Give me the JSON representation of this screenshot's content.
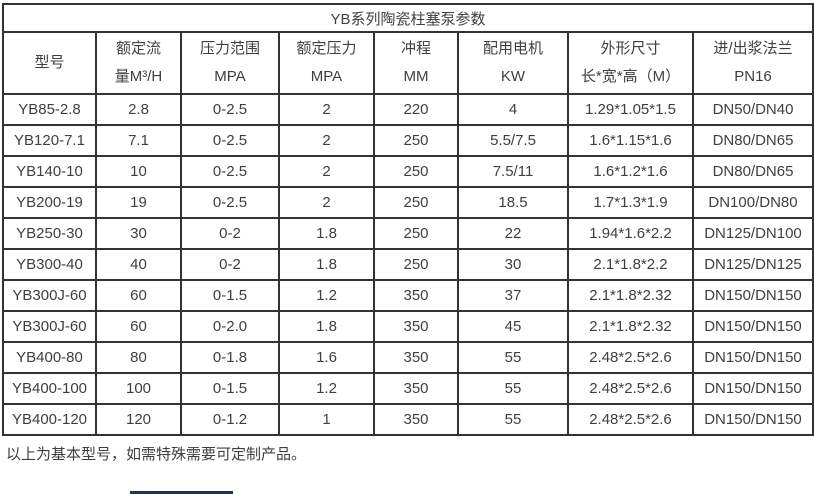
{
  "table": {
    "title": "YB系列陶瓷柱塞泵参数",
    "columns": [
      {
        "key": "model",
        "line1": "型号",
        "line2": ""
      },
      {
        "key": "rated-flow",
        "line1": "额定流",
        "line2": "量M³/H"
      },
      {
        "key": "pressure-range",
        "line1": "压力范围",
        "line2": "MPA"
      },
      {
        "key": "rated-pressure",
        "line1": "额定压力",
        "line2": "MPA"
      },
      {
        "key": "stroke",
        "line1": "冲程",
        "line2": "MM"
      },
      {
        "key": "motor",
        "line1": "配用电机",
        "line2": "KW"
      },
      {
        "key": "dimensions",
        "line1": "外形尺寸",
        "line2": "长*宽*高（M）"
      },
      {
        "key": "flange",
        "line1": "进/出浆法兰",
        "line2": "PN16"
      }
    ],
    "rows": [
      [
        "YB85-2.8",
        "2.8",
        "0-2.5",
        "2",
        "220",
        "4",
        "1.29*1.05*1.5",
        "DN50/DN40"
      ],
      [
        "YB120-7.1",
        "7.1",
        "0-2.5",
        "2",
        "250",
        "5.5/7.5",
        "1.6*1.15*1.6",
        "DN80/DN65"
      ],
      [
        "YB140-10",
        "10",
        "0-2.5",
        "2",
        "250",
        "7.5/11",
        "1.6*1.2*1.6",
        "DN80/DN65"
      ],
      [
        "YB200-19",
        "19",
        "0-2.5",
        "2",
        "250",
        "18.5",
        "1.7*1.3*1.9",
        "DN100/DN80"
      ],
      [
        "YB250-30",
        "30",
        "0-2",
        "1.8",
        "250",
        "22",
        "1.94*1.6*2.2",
        "DN125/DN100"
      ],
      [
        "YB300-40",
        "40",
        "0-2",
        "1.8",
        "250",
        "30",
        "2.1*1.8*2.2",
        "DN125/DN125"
      ],
      [
        "YB300J-60",
        "60",
        "0-1.5",
        "1.2",
        "350",
        "37",
        "2.1*1.8*2.32",
        "DN150/DN150"
      ],
      [
        "YB300J-60",
        "60",
        "0-2.0",
        "1.8",
        "350",
        "45",
        "2.1*1.8*2.32",
        "DN150/DN150"
      ],
      [
        "YB400-80",
        "80",
        "0-1.8",
        "1.6",
        "350",
        "55",
        "2.48*2.5*2.6",
        "DN150/DN150"
      ],
      [
        "YB400-100",
        "100",
        "0-1.5",
        "1.2",
        "350",
        "55",
        "2.48*2.5*2.6",
        "DN150/DN150"
      ],
      [
        "YB400-120",
        "120",
        "0-1.2",
        "1",
        "350",
        "55",
        "2.48*2.5*2.6",
        "DN150/DN150"
      ]
    ]
  },
  "footer": {
    "note": "以上为基本型号，如需特殊需要可定制产品。"
  },
  "colors": {
    "border": "#333333",
    "text": "#3f3f3f",
    "cutoff_bar": "#17375e"
  }
}
